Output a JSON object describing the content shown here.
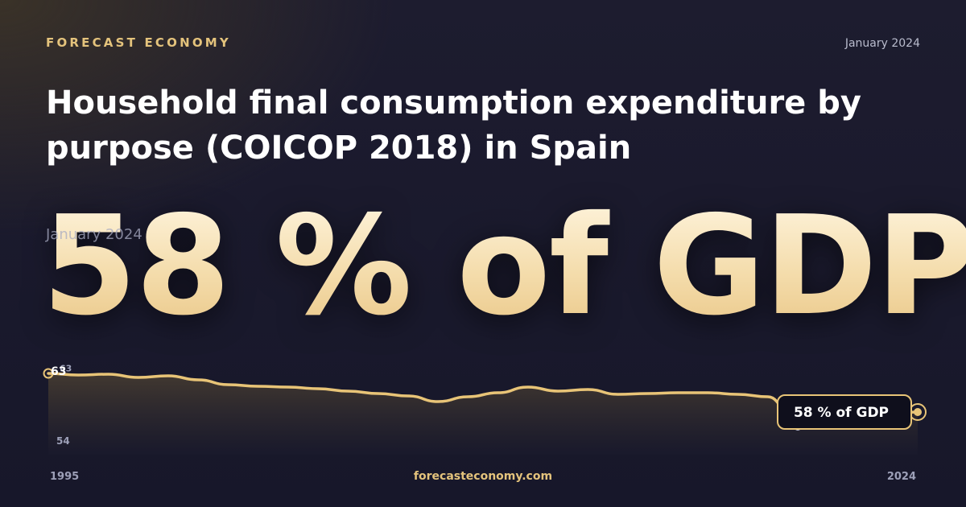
{
  "brand": "FORECAST ECONOMY",
  "date_top": "January 2024",
  "title": "Household final consumption expenditure by purpose (COICOP 2018) in Spain",
  "headline_value": "58 % of GDP",
  "headline_date": "January 2024",
  "footer_site": "forecasteconomy.com",
  "colors": {
    "accent": "#e4c37c",
    "line": "#e8c477",
    "marker_low": "#c9cbe0"
  },
  "chart_data": {
    "type": "area",
    "x": [
      1995,
      1996,
      1997,
      1998,
      1999,
      2000,
      2001,
      2002,
      2003,
      2004,
      2005,
      2006,
      2007,
      2008,
      2009,
      2010,
      2011,
      2012,
      2013,
      2014,
      2015,
      2016,
      2017,
      2018,
      2019,
      2020,
      2021,
      2022,
      2023,
      2024
    ],
    "values": [
      62.8,
      62.6,
      62.7,
      62.3,
      62.5,
      62.0,
      61.4,
      61.2,
      61.1,
      60.9,
      60.6,
      60.3,
      60.0,
      59.3,
      59.9,
      60.4,
      61.1,
      60.6,
      60.8,
      60.2,
      60.3,
      60.4,
      60.4,
      60.2,
      59.9,
      56.2,
      56.7,
      57.8,
      57.8,
      58.0
    ],
    "y_top_label": "63",
    "y_top_label_secondary": "63",
    "y_bottom_label": "54",
    "ylim": [
      54,
      63
    ],
    "x_start_label": "1995",
    "x_end_label": "2024",
    "min_point": {
      "x": 2020,
      "value": 56.2
    },
    "callout": "58 % of GDP"
  }
}
